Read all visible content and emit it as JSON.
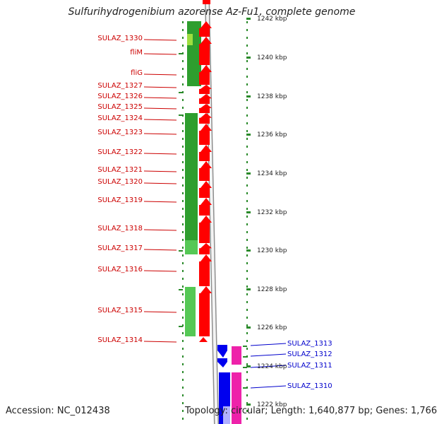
{
  "title": "Sulfurihydrogenibium azorense Az-Fu1, complete genome",
  "accession": "Accession: NC_012438",
  "topology": "Topology: circular; Length: 1,640,877 bp; Genes: 1,766",
  "colors": {
    "forward_cds": "#ff0000",
    "reverse_cds": "#0000ee",
    "forward_label": "#cc0000",
    "reverse_label": "#0000cc",
    "feature_green": "#2e9e2e",
    "feature_magenta": "#ee22aa",
    "tick_green": "#2a8a2a"
  },
  "scale": {
    "unit": "kbp",
    "ticks": [
      "1242 kbp",
      "1240 kbp",
      "1238 kbp",
      "1236 kbp",
      "1234 kbp",
      "1232 kbp",
      "1230 kbp",
      "1228 kbp",
      "1226 kbp",
      "1224 kbp",
      "1222 kbp"
    ]
  },
  "forward_genes": [
    "SULAZ_1330",
    "fliM",
    "fliG",
    "SULAZ_1327",
    "SULAZ_1326",
    "SULAZ_1325",
    "SULAZ_1324",
    "SULAZ_1323",
    "SULAZ_1322",
    "SULAZ_1321",
    "SULAZ_1320",
    "SULAZ_1319",
    "SULAZ_1318",
    "SULAZ_1317",
    "SULAZ_1316",
    "SULAZ_1315",
    "SULAZ_1314"
  ],
  "reverse_genes": [
    "SULAZ_1313",
    "SULAZ_1312",
    "SULAZ_1311",
    "SULAZ_1310"
  ]
}
